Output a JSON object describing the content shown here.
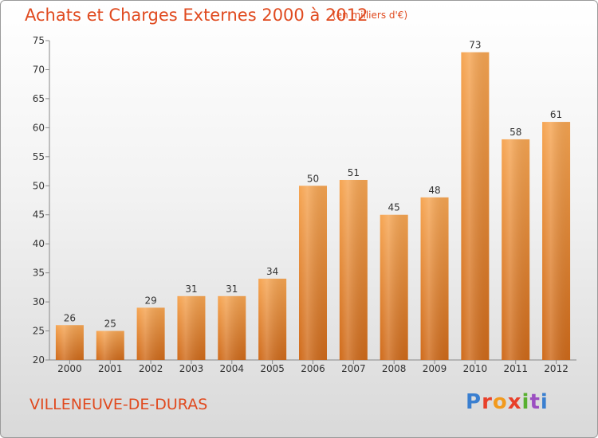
{
  "header": {
    "title": "Achats et Charges Externes 2000 à 2012",
    "subtitle": "(en milliers d'€)"
  },
  "footer": {
    "commune": "VILLENEUVE-DE-DURAS",
    "logo": "Proxiti",
    "logo_colors": [
      "#3a7fd0",
      "#e8402a",
      "#f29a1d",
      "#e8402a",
      "#58b030",
      "#9b4fc1",
      "#3a7fd0"
    ]
  },
  "chart_data": {
    "type": "bar",
    "categories": [
      "2000",
      "2001",
      "2002",
      "2003",
      "2004",
      "2005",
      "2006",
      "2007",
      "2008",
      "2009",
      "2010",
      "2011",
      "2012"
    ],
    "values": [
      26,
      25,
      29,
      31,
      31,
      34,
      50,
      51,
      45,
      48,
      73,
      58,
      61
    ],
    "title": "Achats et Charges Externes 2000 à 2012",
    "ylim": [
      20,
      75
    ],
    "yticks": [
      20,
      25,
      30,
      35,
      40,
      45,
      50,
      55,
      60,
      65,
      70,
      75
    ],
    "grid": false,
    "bar_color": "#f0953a"
  }
}
